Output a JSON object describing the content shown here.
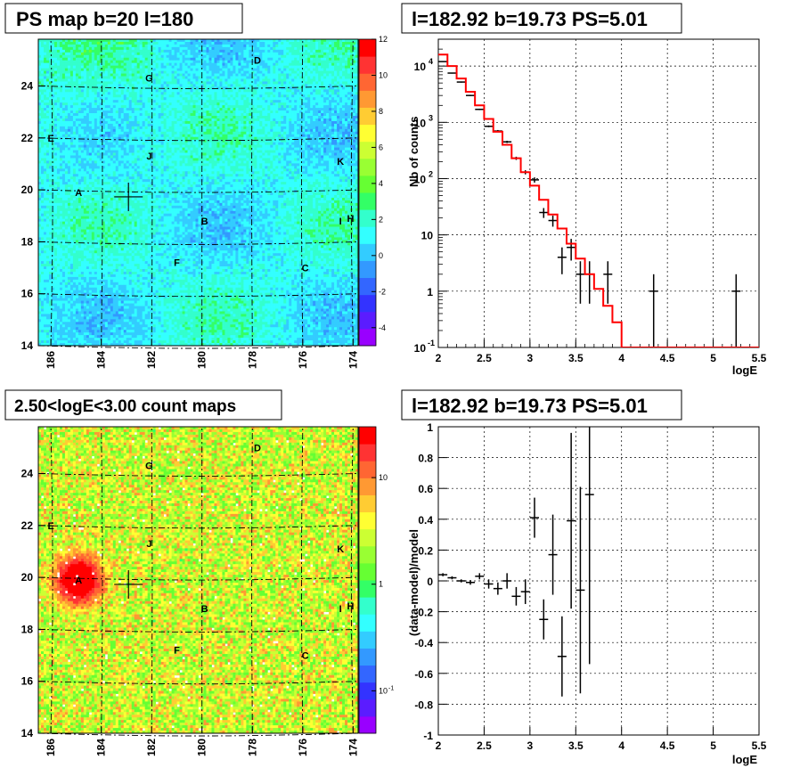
{
  "chart_data": [
    {
      "type": "heatmap",
      "title": "PS map b=20 l=180",
      "x_ticks": [
        "186",
        "184",
        "182",
        "180",
        "178",
        "176",
        "174"
      ],
      "y_ticks": [
        "14",
        "16",
        "18",
        "20",
        "22",
        "24"
      ],
      "xlim": [
        186.5,
        173.8
      ],
      "ylim": [
        14,
        25.8
      ],
      "colorbar_ticks": [
        "12",
        "10",
        "8",
        "6",
        "4",
        "2",
        "0",
        "-2",
        "-4"
      ],
      "colorbar_range": [
        -5,
        12
      ],
      "marker": {
        "l": 182.92,
        "b": 19.73
      },
      "sources": [
        {
          "label": "A",
          "l": 184.9,
          "b": 19.9
        },
        {
          "label": "B",
          "l": 179.9,
          "b": 18.8
        },
        {
          "label": "C",
          "l": 175.9,
          "b": 17.0
        },
        {
          "label": "D",
          "l": 177.8,
          "b": 25.0
        },
        {
          "label": "E",
          "l": 186.0,
          "b": 22.0
        },
        {
          "label": "F",
          "l": 181.0,
          "b": 17.2
        },
        {
          "label": "G",
          "l": 182.1,
          "b": 24.3
        },
        {
          "label": "H",
          "l": 174.1,
          "b": 18.9
        },
        {
          "label": "I",
          "l": 174.5,
          "b": 18.8
        },
        {
          "label": "J",
          "l": 182.1,
          "b": 21.3
        },
        {
          "label": "K",
          "l": 174.5,
          "b": 21.1
        }
      ]
    },
    {
      "type": "line",
      "title": "l=182.92 b=19.73 PS=5.01",
      "xlabel": "logE",
      "ylabel": "Nb of counts",
      "yscale": "log",
      "xlim": [
        2,
        5.5
      ],
      "ylim": [
        0.1,
        30000
      ],
      "x_ticks": [
        "2",
        "2.5",
        "3",
        "3.5",
        "4",
        "4.5",
        "5",
        "5.5"
      ],
      "y_ticks": [
        {
          "v": 10000,
          "label": "10",
          "sup": "4"
        },
        {
          "v": 1000,
          "label": "10",
          "sup": "3"
        },
        {
          "v": 100,
          "label": "10",
          "sup": "2"
        },
        {
          "v": 10,
          "label": "10",
          "sup": ""
        },
        {
          "v": 1,
          "label": "1",
          "sup": ""
        },
        {
          "v": 0.1,
          "label": "10",
          "sup": "-1"
        }
      ],
      "data_points": [
        {
          "x": 2.05,
          "y": 12000,
          "lo": 11800,
          "hi": 12200
        },
        {
          "x": 2.15,
          "y": 7500,
          "lo": 7350,
          "hi": 7650
        },
        {
          "x": 2.25,
          "y": 5200,
          "lo": 5080,
          "hi": 5320
        },
        {
          "x": 2.35,
          "y": 3000,
          "lo": 2920,
          "hi": 3080
        },
        {
          "x": 2.45,
          "y": 1700,
          "lo": 1650,
          "hi": 1750
        },
        {
          "x": 2.55,
          "y": 850,
          "lo": 820,
          "hi": 880
        },
        {
          "x": 2.65,
          "y": 700,
          "lo": 670,
          "hi": 730
        },
        {
          "x": 2.75,
          "y": 450,
          "lo": 430,
          "hi": 470
        },
        {
          "x": 2.85,
          "y": 230,
          "lo": 215,
          "hi": 245
        },
        {
          "x": 2.95,
          "y": 130,
          "lo": 119,
          "hi": 141
        },
        {
          "x": 3.05,
          "y": 95,
          "lo": 85,
          "hi": 105
        },
        {
          "x": 3.15,
          "y": 25,
          "lo": 20,
          "hi": 30
        },
        {
          "x": 3.25,
          "y": 18,
          "lo": 14,
          "hi": 22
        },
        {
          "x": 3.35,
          "y": 4,
          "lo": 2,
          "hi": 6
        },
        {
          "x": 3.45,
          "y": 6,
          "lo": 3.5,
          "hi": 8.5
        },
        {
          "x": 3.55,
          "y": 2,
          "lo": 0.6,
          "hi": 3.4
        },
        {
          "x": 3.65,
          "y": 2,
          "lo": 0.6,
          "hi": 3.4
        },
        {
          "x": 3.85,
          "y": 2,
          "lo": 0.6,
          "hi": 3.4
        },
        {
          "x": 4.35,
          "y": 1,
          "lo": 0.1,
          "hi": 2
        },
        {
          "x": 5.25,
          "y": 1,
          "lo": 0.1,
          "hi": 2
        }
      ],
      "model_step": [
        {
          "x0": 2.0,
          "x1": 2.1,
          "y": 16000
        },
        {
          "x0": 2.1,
          "x1": 2.2,
          "y": 10000
        },
        {
          "x0": 2.2,
          "x1": 2.3,
          "y": 6000
        },
        {
          "x0": 2.3,
          "x1": 2.4,
          "y": 3500
        },
        {
          "x0": 2.4,
          "x1": 2.5,
          "y": 2000
        },
        {
          "x0": 2.5,
          "x1": 2.6,
          "y": 1150
        },
        {
          "x0": 2.6,
          "x1": 2.7,
          "y": 680
        },
        {
          "x0": 2.7,
          "x1": 2.8,
          "y": 400
        },
        {
          "x0": 2.8,
          "x1": 2.9,
          "y": 230
        },
        {
          "x0": 2.9,
          "x1": 3.0,
          "y": 130
        },
        {
          "x0": 3.0,
          "x1": 3.1,
          "y": 75
        },
        {
          "x0": 3.1,
          "x1": 3.2,
          "y": 42
        },
        {
          "x0": 3.2,
          "x1": 3.3,
          "y": 23
        },
        {
          "x0": 3.3,
          "x1": 3.4,
          "y": 13
        },
        {
          "x0": 3.4,
          "x1": 3.5,
          "y": 7
        },
        {
          "x0": 3.5,
          "x1": 3.6,
          "y": 3.8
        },
        {
          "x0": 3.6,
          "x1": 3.7,
          "y": 2.0
        },
        {
          "x0": 3.7,
          "x1": 3.8,
          "y": 1.1
        },
        {
          "x0": 3.8,
          "x1": 3.9,
          "y": 0.55
        },
        {
          "x0": 3.9,
          "x1": 4.0,
          "y": 0.28
        },
        {
          "x0": 4.0,
          "x1": 5.5,
          "y": 0.1
        }
      ],
      "model_color": "#ff0000"
    },
    {
      "type": "heatmap",
      "title": "2.50<logE<3.00 count maps",
      "x_ticks": [
        "186",
        "184",
        "182",
        "180",
        "178",
        "176",
        "174"
      ],
      "y_ticks": [
        "14",
        "16",
        "18",
        "20",
        "22",
        "24"
      ],
      "xlim": [
        186.5,
        173.8
      ],
      "ylim": [
        14,
        25.8
      ],
      "colorbar_ticks": [
        {
          "label": "10",
          "sup": "",
          "v": 10
        },
        {
          "label": "1",
          "sup": "",
          "v": 1
        },
        {
          "label": "10",
          "sup": "-1",
          "v": 0.1
        }
      ],
      "colorbar_scale": "log",
      "colorbar_range": [
        0.04,
        30
      ],
      "marker": {
        "l": 182.92,
        "b": 19.73
      },
      "sources": [
        {
          "label": "A",
          "l": 184.9,
          "b": 19.9
        },
        {
          "label": "B",
          "l": 179.9,
          "b": 18.8
        },
        {
          "label": "C",
          "l": 175.9,
          "b": 17.0
        },
        {
          "label": "D",
          "l": 177.8,
          "b": 25.0
        },
        {
          "label": "E",
          "l": 186.0,
          "b": 22.0
        },
        {
          "label": "F",
          "l": 181.0,
          "b": 17.2
        },
        {
          "label": "G",
          "l": 182.1,
          "b": 24.3
        },
        {
          "label": "H",
          "l": 174.1,
          "b": 18.9
        },
        {
          "label": "I",
          "l": 174.5,
          "b": 18.8
        },
        {
          "label": "J",
          "l": 182.1,
          "b": 21.3
        },
        {
          "label": "K",
          "l": 174.5,
          "b": 21.1
        }
      ]
    },
    {
      "type": "scatter",
      "title": "l=182.92 b=19.73 PS=5.01",
      "xlabel": "logE",
      "ylabel": "(data-model)/model",
      "xlim": [
        2,
        5.5
      ],
      "ylim": [
        -1,
        1
      ],
      "x_ticks": [
        "2",
        "2.5",
        "3",
        "3.5",
        "4",
        "4.5",
        "5",
        "5.5"
      ],
      "y_ticks": [
        "1",
        "0.8",
        "0.6",
        "0.4",
        "0.2",
        "0",
        "-0.2",
        "-0.4",
        "-0.6",
        "-0.8",
        "-1"
      ],
      "data_points": [
        {
          "x": 2.05,
          "y": 0.04,
          "err": 0.01
        },
        {
          "x": 2.15,
          "y": 0.02,
          "err": 0.01
        },
        {
          "x": 2.25,
          "y": 0.0,
          "err": 0.01
        },
        {
          "x": 2.35,
          "y": -0.01,
          "err": 0.015
        },
        {
          "x": 2.45,
          "y": 0.03,
          "err": 0.02
        },
        {
          "x": 2.55,
          "y": -0.02,
          "err": 0.03
        },
        {
          "x": 2.65,
          "y": -0.05,
          "err": 0.04
        },
        {
          "x": 2.75,
          "y": 0.0,
          "err": 0.05
        },
        {
          "x": 2.85,
          "y": -0.1,
          "err": 0.06
        },
        {
          "x": 2.95,
          "y": -0.07,
          "err": 0.08
        },
        {
          "x": 3.05,
          "y": 0.41,
          "err": 0.13
        },
        {
          "x": 3.15,
          "y": -0.25,
          "err": 0.13
        },
        {
          "x": 3.25,
          "y": 0.17,
          "err": 0.26
        },
        {
          "x": 3.35,
          "y": -0.49,
          "err": 0.26
        },
        {
          "x": 3.45,
          "y": 0.39,
          "err": 0.57
        },
        {
          "x": 3.55,
          "y": -0.06,
          "err": 0.67
        },
        {
          "x": 3.65,
          "y": 0.56,
          "err": 1.1
        }
      ]
    }
  ]
}
